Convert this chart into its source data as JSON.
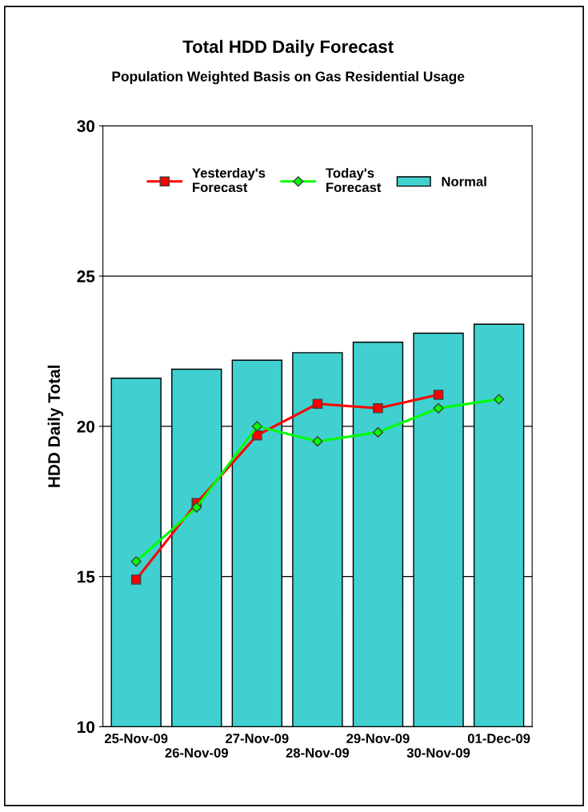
{
  "chart_data": {
    "type": "bar",
    "title": "Total HDD Daily Forecast",
    "subtitle": "Population Weighted Basis on Gas Residential Usage",
    "ylabel": "HDD Daily Total",
    "categories": [
      "25-Nov-09",
      "26-Nov-09",
      "27-Nov-09",
      "28-Nov-09",
      "29-Nov-09",
      "30-Nov-09",
      "01-Dec-09"
    ],
    "series": [
      {
        "name": "Normal",
        "color": "#40d0d0",
        "values": [
          21.6,
          21.9,
          22.2,
          22.45,
          22.8,
          23.1,
          23.4
        ]
      },
      {
        "name": "Yesterday's\nForecast",
        "type": "line",
        "color": "#ff0000",
        "marker": "square",
        "values": [
          14.9,
          17.45,
          19.7,
          20.75,
          20.6,
          21.05,
          null
        ]
      },
      {
        "name": "Today's\nForecast",
        "type": "line",
        "color": "#00ff00",
        "marker": "diamond",
        "values": [
          15.5,
          17.3,
          20.0,
          19.5,
          19.8,
          20.6,
          20.9
        ]
      }
    ],
    "ylim": [
      10,
      30
    ],
    "yticks": [
      10,
      15,
      20,
      25,
      30
    ],
    "grid": "y",
    "legend": "top"
  }
}
